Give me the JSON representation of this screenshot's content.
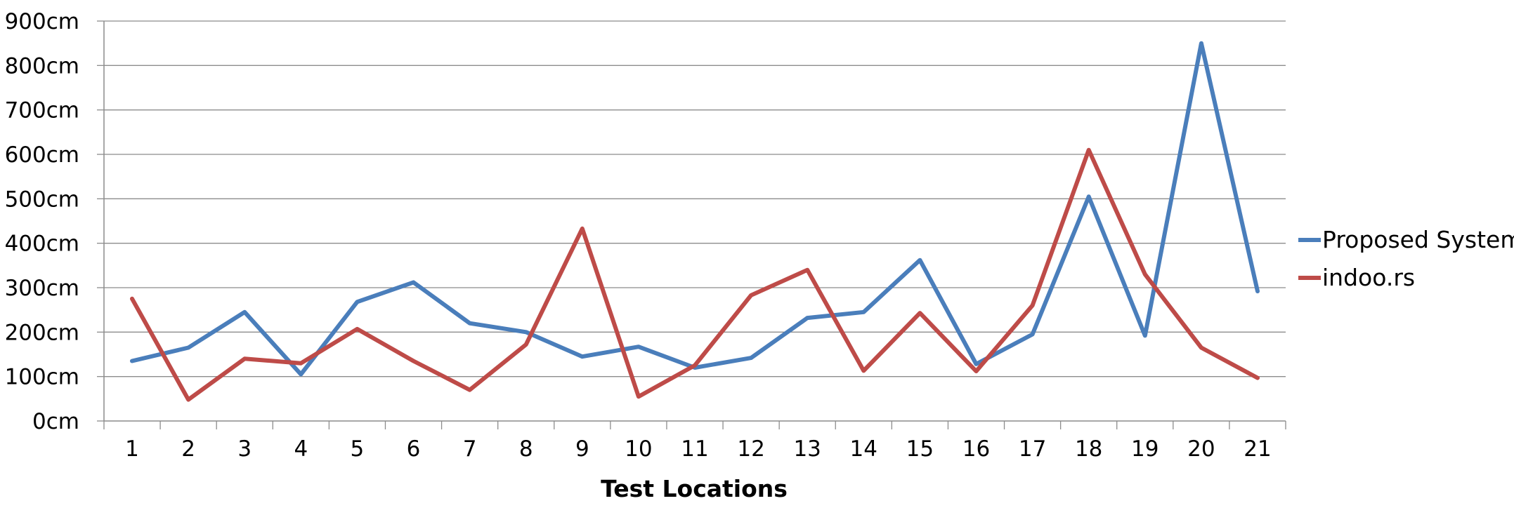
{
  "chart_data": {
    "type": "line",
    "title": "",
    "xlabel": "Test Locations",
    "ylabel": "",
    "categories": [
      "1",
      "2",
      "3",
      "4",
      "5",
      "6",
      "7",
      "8",
      "9",
      "10",
      "11",
      "12",
      "13",
      "14",
      "15",
      "16",
      "17",
      "18",
      "19",
      "20",
      "21"
    ],
    "y_ticks": [
      "0cm",
      "100cm",
      "200cm",
      "300cm",
      "400cm",
      "500cm",
      "600cm",
      "700cm",
      "800cm",
      "900cm"
    ],
    "ylim": [
      0,
      900
    ],
    "y_tick_step": 100,
    "grid": true,
    "legend_position": "right",
    "series": [
      {
        "name": "Proposed System",
        "color": "#4A7EBB",
        "values": [
          135,
          165,
          245,
          105,
          268,
          312,
          220,
          200,
          145,
          167,
          120,
          142,
          232,
          245,
          362,
          128,
          195,
          505,
          192,
          850,
          292
        ]
      },
      {
        "name": "indoo.rs",
        "color": "#BE4B48",
        "values": [
          275,
          48,
          140,
          130,
          207,
          135,
          70,
          172,
          433,
          55,
          125,
          283,
          340,
          113,
          243,
          112,
          260,
          610,
          330,
          165,
          97
        ]
      }
    ]
  }
}
